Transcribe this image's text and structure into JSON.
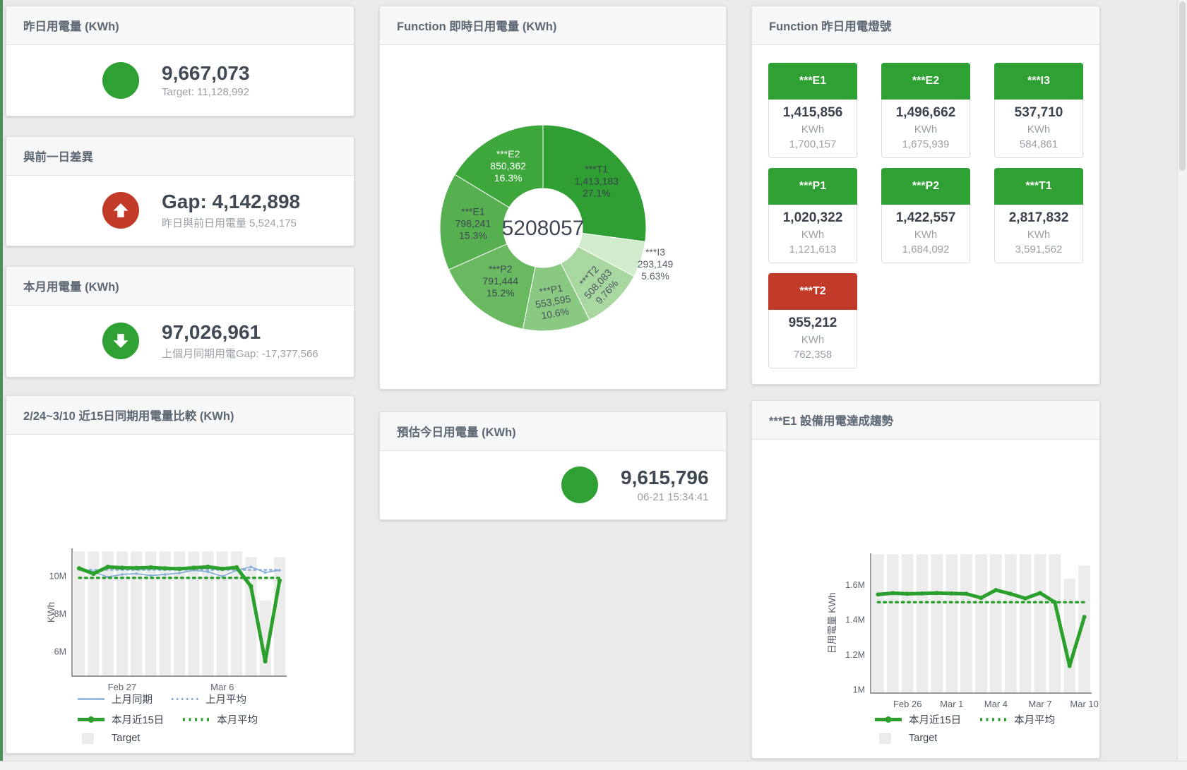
{
  "colors": {
    "green": "#2fa033",
    "red": "#c23a28",
    "blue": "#86aed7",
    "line_green": "#2ca02c",
    "bar_gray": "#ececec"
  },
  "panels": {
    "yesterday": {
      "title": "昨日用電量 (KWh)",
      "value": "9,667,073",
      "sub": "Target: 11,128,992",
      "status": "green"
    },
    "gap": {
      "title": "與前一日差異",
      "value": "Gap: 4,142,898",
      "sub": "昨日與前日用電量 5,524,175",
      "status": "red",
      "icon": "up-arrow"
    },
    "month": {
      "title": "本月用電量 (KWh)",
      "value": "97,026,961",
      "sub": "上個月同期用電Gap: -17,377,566",
      "status": "green",
      "icon": "down-arrow"
    },
    "estimate": {
      "title": "預估今日用電量 (KWh)",
      "value": "9,615,796",
      "sub": "06-21 15:34:41",
      "status": "green"
    },
    "donut": {
      "title": "Function 即時日用電量 (KWh)"
    },
    "lights": {
      "title": "Function 昨日用電燈號",
      "tiles": [
        {
          "label": "***E1",
          "value": "1,415,856",
          "unit": "KWh",
          "target": "1,700,157",
          "status": "green"
        },
        {
          "label": "***E2",
          "value": "1,496,662",
          "unit": "KWh",
          "target": "1,675,939",
          "status": "green"
        },
        {
          "label": "***I3",
          "value": "537,710",
          "unit": "KWh",
          "target": "584,861",
          "status": "green"
        },
        {
          "label": "***P1",
          "value": "1,020,322",
          "unit": "KWh",
          "target": "1,121,613",
          "status": "green"
        },
        {
          "label": "***P2",
          "value": "1,422,557",
          "unit": "KWh",
          "target": "1,684,092",
          "status": "green"
        },
        {
          "label": "***T1",
          "value": "2,817,832",
          "unit": "KWh",
          "target": "3,591,562",
          "status": "green"
        },
        {
          "label": "***T2",
          "value": "955,212",
          "unit": "KWh",
          "target": "762,358",
          "status": "red"
        }
      ]
    },
    "compare": {
      "title": "2/24~3/10 近15日同期用電量比較 (KWh)"
    },
    "trend": {
      "title": "***E1 設備用電達成趨勢"
    }
  },
  "chart_data": [
    {
      "type": "pie",
      "title": "Function 即時日用電量 (KWh)",
      "center_label": "5208057",
      "slices": [
        {
          "name": "***T1",
          "value": 1413183,
          "value_label": "1,413,183",
          "pct": 27.1,
          "pct_label": "27.1%",
          "color": "#2f9e33",
          "label_color": "#37414d",
          "rotate": 0,
          "label_r": 0.69
        },
        {
          "name": "***I3",
          "value": 293149,
          "value_label": "293,149",
          "pct": 5.63,
          "pct_label": "5.63%",
          "color": "#d2ebcd",
          "label_color": "#59626c",
          "rotate": 0,
          "outside": true
        },
        {
          "name": "***T2",
          "value": 508083,
          "value_label": "508,083",
          "pct": 9.76,
          "pct_label": "9.76%",
          "color": "#a8d7a0",
          "label_color": "#4a545f",
          "rotate": -48,
          "label_r": 0.76
        },
        {
          "name": "***P1",
          "value": 553595,
          "value_label": "553,595",
          "pct": 10.6,
          "pct_label": "10.6%",
          "color": "#89c981",
          "label_color": "#4a545f",
          "rotate": -10,
          "label_r": 0.72
        },
        {
          "name": "***P2",
          "value": 791444,
          "value_label": "791,444",
          "pct": 15.2,
          "pct_label": "15.2%",
          "color": "#69b961",
          "label_color": "#3f4954",
          "rotate": 0,
          "label_r": 0.66
        },
        {
          "name": "***E1",
          "value": 798241,
          "value_label": "798,241",
          "pct": 15.3,
          "pct_label": "15.3%",
          "color": "#57b050",
          "label_color": "#3f4954",
          "rotate": 0,
          "label_r": 0.68
        },
        {
          "name": "***E2",
          "value": 850362,
          "value_label": "850,362",
          "pct": 16.3,
          "pct_label": "16.3%",
          "color": "#3da73c",
          "label_color": "#ffffff",
          "rotate": 0,
          "label_r": 0.69
        }
      ]
    },
    {
      "type": "line",
      "title": "2/24~3/10 近15日同期用電量比較 (KWh)",
      "ylabel": "KWh",
      "ylim": [
        4690000,
        11460000
      ],
      "yticks": [
        {
          "v": 6000000,
          "label": "6M"
        },
        {
          "v": 8000000,
          "label": "8M"
        },
        {
          "v": 10000000,
          "label": "10M"
        }
      ],
      "x_count": 15,
      "xticks": [
        {
          "i": 3,
          "label": "Feb 27"
        },
        {
          "i": 10,
          "label": "Mar 6"
        }
      ],
      "bars": {
        "name": "Target",
        "color": "#ececec",
        "values": [
          11300000,
          11300000,
          11300000,
          11300000,
          11300000,
          11300000,
          11300000,
          11300000,
          11300000,
          11300000,
          11300000,
          11300000,
          11000000,
          8700000,
          11000000
        ]
      },
      "series": [
        {
          "name": "上月同期",
          "color": "#86aed7",
          "width": 1.7,
          "dash": "",
          "marker": 1.8,
          "values": [
            10350000,
            10220000,
            9950000,
            10080000,
            10120000,
            10020000,
            10080000,
            10150000,
            10300000,
            10220000,
            9980000,
            10300000,
            10480000,
            10180000,
            10300000
          ]
        },
        {
          "name": "上月平均",
          "color": "#86aed7",
          "width": 2.5,
          "dash": "2.5 5",
          "marker": 0,
          "values": [
            10320000,
            10320000,
            10320000,
            10320000,
            10320000,
            10320000,
            10320000,
            10320000,
            10320000,
            10320000,
            10320000,
            10320000,
            10320000,
            10320000,
            10320000
          ]
        },
        {
          "name": "本月近15日",
          "color": "#2ca02c",
          "width": 5,
          "dash": "",
          "marker": 3.2,
          "values": [
            10400000,
            10120000,
            10480000,
            10430000,
            10420000,
            10450000,
            10400000,
            10380000,
            10430000,
            10480000,
            10380000,
            10450000,
            9450000,
            5480000,
            9750000
          ]
        },
        {
          "name": "本月平均",
          "color": "#2ca02c",
          "width": 3.5,
          "dash": "2.5 6",
          "marker": 0,
          "values": [
            9900000,
            9900000,
            9900000,
            9900000,
            9900000,
            9900000,
            9900000,
            9900000,
            9900000,
            9900000,
            9900000,
            9900000,
            9900000,
            9900000,
            9900000
          ]
        }
      ],
      "legend": [
        [
          {
            "label": "上月同期",
            "swatch": "solid",
            "color": "#86aed7"
          },
          {
            "label": "上月平均",
            "swatch": "dotted",
            "color": "#86aed7"
          }
        ],
        [
          {
            "label": "本月近15日",
            "swatch": "thick",
            "color": "#2ca02c"
          },
          {
            "label": "本月平均",
            "swatch": "dotted-thick",
            "color": "#2ca02c"
          }
        ],
        [
          {
            "label": "Target",
            "swatch": "box",
            "color": "#ececec"
          }
        ]
      ]
    },
    {
      "type": "line",
      "title": "***E1 設備用電達成趨勢",
      "ylabel": "日用電量 KWh",
      "ylim": [
        980000,
        1780000
      ],
      "yticks": [
        {
          "v": 1000000,
          "label": "1M"
        },
        {
          "v": 1200000,
          "label": "1.2M"
        },
        {
          "v": 1400000,
          "label": "1.4M"
        },
        {
          "v": 1600000,
          "label": "1.6M"
        }
      ],
      "x_count": 15,
      "xticks": [
        {
          "i": 2,
          "label": "Feb 26"
        },
        {
          "i": 5,
          "label": "Mar 1"
        },
        {
          "i": 8,
          "label": "Mar 4"
        },
        {
          "i": 11,
          "label": "Mar 7"
        },
        {
          "i": 14,
          "label": "Mar 10"
        }
      ],
      "bars": {
        "name": "Target",
        "color": "#ececec",
        "values": [
          1775000,
          1775000,
          1775000,
          1775000,
          1775000,
          1775000,
          1775000,
          1775000,
          1775000,
          1775000,
          1775000,
          1775000,
          1775000,
          1635000,
          1710000
        ]
      },
      "series": [
        {
          "name": "本月近15日",
          "color": "#2ca02c",
          "width": 5,
          "dash": "",
          "marker": 3,
          "values": [
            1545000,
            1552000,
            1548000,
            1550000,
            1553000,
            1550000,
            1548000,
            1525000,
            1570000,
            1548000,
            1522000,
            1553000,
            1500000,
            1135000,
            1415000
          ]
        },
        {
          "name": "本月平均",
          "color": "#2ca02c",
          "width": 3.5,
          "dash": "2.5 6",
          "marker": 0,
          "values": [
            1500000,
            1500000,
            1500000,
            1500000,
            1500000,
            1500000,
            1500000,
            1500000,
            1500000,
            1500000,
            1500000,
            1500000,
            1500000,
            1500000,
            1500000
          ]
        }
      ],
      "legend": [
        [
          {
            "label": "本月近15日",
            "swatch": "thick",
            "color": "#2ca02c"
          },
          {
            "label": "本月平均",
            "swatch": "dotted-thick",
            "color": "#2ca02c"
          }
        ],
        [
          {
            "label": "Target",
            "swatch": "box",
            "color": "#ececec"
          }
        ]
      ]
    }
  ]
}
